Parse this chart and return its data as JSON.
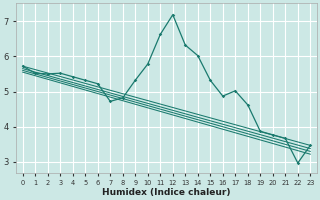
{
  "xlabel": "Humidex (Indice chaleur)",
  "xlim": [
    -0.5,
    23.5
  ],
  "ylim": [
    2.7,
    7.5
  ],
  "xticks": [
    0,
    1,
    2,
    3,
    4,
    5,
    6,
    7,
    8,
    9,
    10,
    11,
    12,
    13,
    14,
    15,
    16,
    17,
    18,
    19,
    20,
    21,
    22,
    23
  ],
  "yticks": [
    3,
    4,
    5,
    6,
    7
  ],
  "background_color": "#cce8e5",
  "grid_color": "#ffffff",
  "line_color": "#1a7a6e",
  "lines": [
    {
      "x": [
        0,
        1,
        2,
        3,
        4,
        5,
        6,
        7,
        8,
        9,
        10,
        11,
        12,
        13,
        14,
        15,
        16,
        17,
        18,
        19,
        20,
        21,
        22,
        23
      ],
      "y": [
        5.72,
        5.52,
        5.5,
        5.52,
        5.42,
        5.32,
        5.22,
        4.72,
        4.82,
        5.32,
        5.78,
        6.62,
        7.18,
        6.32,
        6.02,
        5.32,
        4.87,
        5.02,
        4.62,
        3.87,
        3.77,
        3.67,
        2.97,
        3.47
      ]
    },
    {
      "x": [
        0,
        23
      ],
      "y": [
        5.72,
        3.47
      ]
    },
    {
      "x": [
        0,
        23
      ],
      "y": [
        5.65,
        3.38
      ]
    },
    {
      "x": [
        0,
        23
      ],
      "y": [
        5.6,
        3.3
      ]
    },
    {
      "x": [
        0,
        23
      ],
      "y": [
        5.55,
        3.22
      ]
    }
  ],
  "figsize": [
    3.2,
    2.0
  ],
  "dpi": 100
}
